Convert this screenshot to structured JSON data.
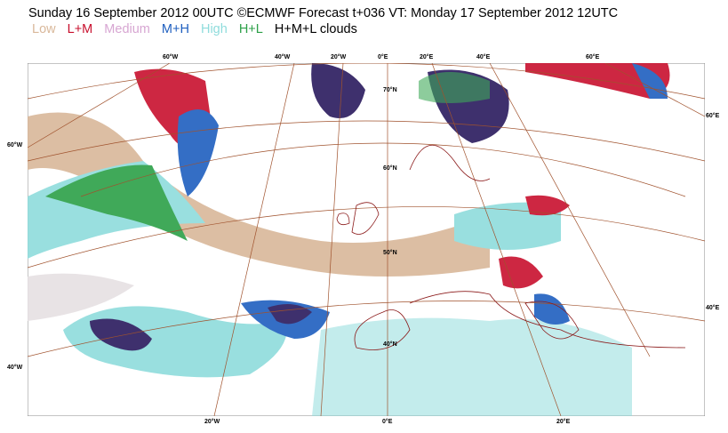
{
  "title": "Sunday 16 September 2012 00UTC ©ECMWF Forecast t+036 VT: Monday 17 September 2012 12UTC",
  "legend": [
    {
      "label": "Low",
      "color": "#d9b89a"
    },
    {
      "label": "L+M",
      "color": "#c8102e"
    },
    {
      "label": "Medium",
      "color": "#d7a6d2"
    },
    {
      "label": "M+H",
      "color": "#1f5fbf"
    },
    {
      "label": "High",
      "color": "#8fdcdc"
    },
    {
      "label": "H+L",
      "color": "#2ca048"
    },
    {
      "label": "H+M+L clouds",
      "color": "#000000"
    }
  ],
  "top_ticks": [
    "60°W",
    "40°W",
    "20°W",
    "0°E",
    "20°E",
    "40°E",
    "60°E"
  ],
  "bottom_ticks": [
    "20°W",
    "0°E",
    "20°E"
  ],
  "left_ticks": [
    "60°W",
    "40°W"
  ],
  "right_ticks": [
    "60°E",
    "40°E"
  ],
  "lat_labels": [
    "70°N",
    "60°N",
    "50°N",
    "40°N"
  ],
  "colors": {
    "coast": "#8b1a1a",
    "graticule": "#a0522d",
    "hml": "#2a1a5e"
  }
}
